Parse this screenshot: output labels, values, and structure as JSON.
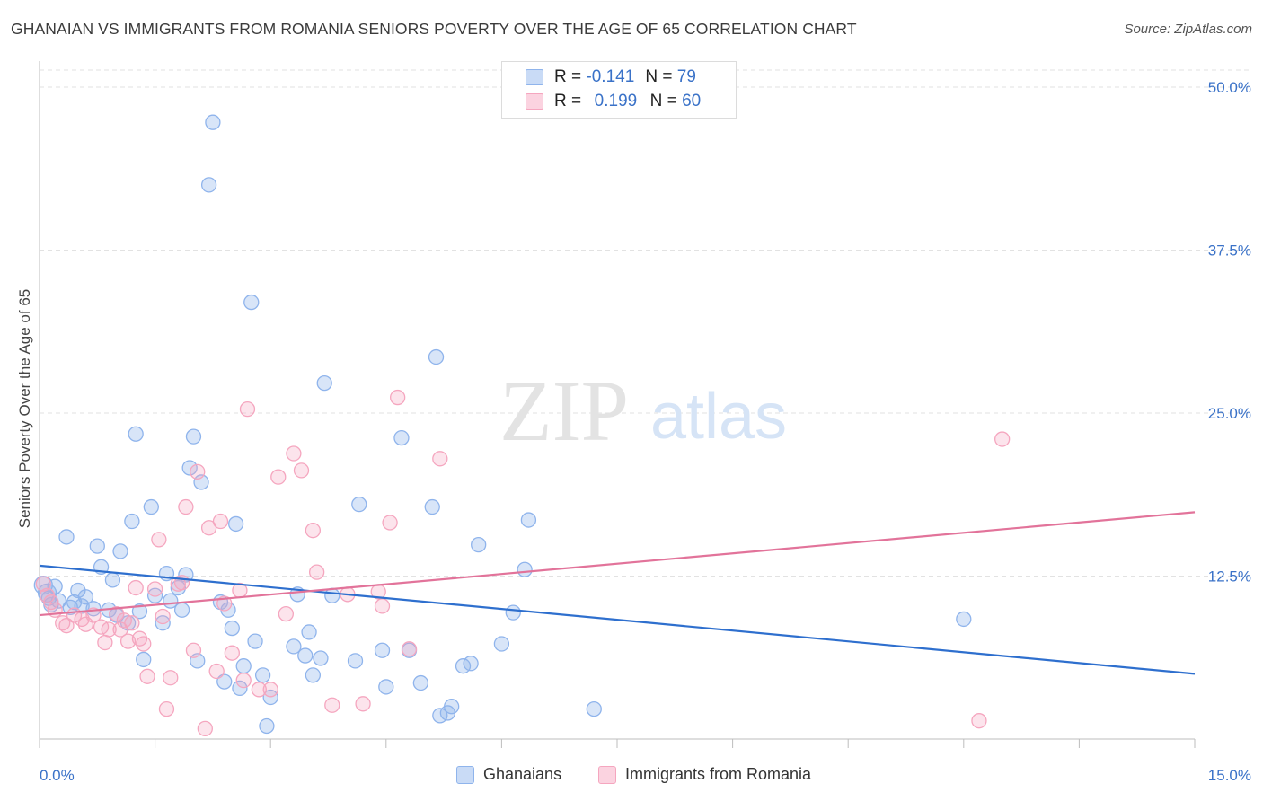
{
  "header": {
    "title": "GHANAIAN VS IMMIGRANTS FROM ROMANIA SENIORS POVERTY OVER THE AGE OF 65 CORRELATION CHART",
    "source": "Source: ZipAtlas.com"
  },
  "watermark": {
    "zip": "ZIP",
    "atlas": "atlas"
  },
  "legend_stats": [
    {
      "r_label": "R =",
      "r_value": "-0.141",
      "n_label": "N =",
      "n_value": "79",
      "color": "#8fb4ec"
    },
    {
      "r_label": "R =",
      "r_value": "0.199",
      "n_label": "N =",
      "n_value": "60",
      "color": "#f5a6bf"
    }
  ],
  "chart_data": {
    "type": "scatter",
    "title": "GHANAIAN VS IMMIGRANTS FROM ROMANIA SENIORS POVERTY OVER THE AGE OF 65 CORRELATION CHART",
    "xlabel": "",
    "ylabel": "Seniors Poverty Over the Age of 65",
    "xlim": [
      0,
      15
    ],
    "ylim": [
      0,
      50
    ],
    "x_tick_labels": [
      "0.0%",
      "15.0%"
    ],
    "y_ticks": [
      12.5,
      25.0,
      37.5,
      50.0
    ],
    "y_tick_labels": [
      "12.5%",
      "25.0%",
      "37.5%",
      "50.0%"
    ],
    "grid": "horizontal dashed",
    "legend_position": "top-center and bottom",
    "series": [
      {
        "name": "Ghanaians",
        "color": "#8fb4ec",
        "line_color": "#2e6fce",
        "trend": {
          "x": [
            0,
            15
          ],
          "y": [
            13.3,
            5.0
          ]
        },
        "points": [
          [
            0.05,
            11.8
          ],
          [
            0.1,
            11.2
          ],
          [
            0.15,
            10.3
          ],
          [
            0.2,
            11.7
          ],
          [
            0.25,
            10.6
          ],
          [
            0.35,
            15.5
          ],
          [
            0.45,
            10.5
          ],
          [
            0.5,
            11.4
          ],
          [
            0.55,
            10.2
          ],
          [
            0.6,
            10.9
          ],
          [
            0.7,
            10.0
          ],
          [
            0.75,
            14.8
          ],
          [
            0.8,
            13.2
          ],
          [
            0.9,
            9.9
          ],
          [
            0.95,
            12.2
          ],
          [
            1.0,
            9.5
          ],
          [
            1.05,
            14.4
          ],
          [
            1.15,
            8.9
          ],
          [
            1.2,
            16.7
          ],
          [
            1.25,
            23.4
          ],
          [
            1.3,
            9.8
          ],
          [
            1.35,
            6.1
          ],
          [
            1.45,
            17.8
          ],
          [
            1.5,
            11.0
          ],
          [
            1.6,
            8.9
          ],
          [
            1.65,
            12.7
          ],
          [
            1.7,
            10.6
          ],
          [
            1.8,
            11.6
          ],
          [
            1.85,
            9.9
          ],
          [
            1.9,
            12.6
          ],
          [
            1.95,
            20.8
          ],
          [
            2.0,
            23.2
          ],
          [
            2.05,
            6.0
          ],
          [
            2.1,
            19.7
          ],
          [
            2.25,
            47.3
          ],
          [
            2.2,
            42.5
          ],
          [
            2.35,
            10.5
          ],
          [
            2.4,
            4.4
          ],
          [
            2.45,
            9.9
          ],
          [
            2.5,
            8.5
          ],
          [
            2.55,
            16.5
          ],
          [
            2.6,
            3.9
          ],
          [
            2.65,
            5.6
          ],
          [
            2.75,
            33.5
          ],
          [
            2.8,
            7.5
          ],
          [
            2.9,
            4.9
          ],
          [
            2.95,
            1.0
          ],
          [
            3.0,
            3.2
          ],
          [
            3.3,
            7.1
          ],
          [
            3.35,
            11.1
          ],
          [
            3.45,
            6.4
          ],
          [
            3.5,
            8.2
          ],
          [
            3.55,
            4.9
          ],
          [
            3.65,
            6.2
          ],
          [
            3.7,
            27.3
          ],
          [
            3.8,
            11.0
          ],
          [
            4.1,
            6.0
          ],
          [
            4.15,
            18.0
          ],
          [
            4.45,
            6.8
          ],
          [
            4.5,
            4.0
          ],
          [
            4.7,
            23.1
          ],
          [
            4.8,
            6.8
          ],
          [
            4.95,
            4.3
          ],
          [
            5.1,
            17.8
          ],
          [
            5.15,
            29.3
          ],
          [
            5.2,
            1.8
          ],
          [
            5.3,
            2.0
          ],
          [
            5.35,
            2.5
          ],
          [
            5.5,
            5.6
          ],
          [
            5.6,
            5.8
          ],
          [
            5.7,
            14.9
          ],
          [
            6.0,
            7.3
          ],
          [
            6.15,
            9.7
          ],
          [
            6.3,
            13.0
          ],
          [
            6.35,
            16.8
          ],
          [
            7.2,
            2.3
          ],
          [
            12.0,
            9.2
          ],
          [
            0.12,
            10.8
          ],
          [
            0.4,
            10.1
          ]
        ]
      },
      {
        "name": "Immigrants from Romania",
        "color": "#f5a6bf",
        "line_color": "#e2739a",
        "trend": {
          "x": [
            0,
            15
          ],
          "y": [
            9.5,
            17.4
          ]
        },
        "points": [
          [
            0.05,
            11.9
          ],
          [
            0.1,
            11.0
          ],
          [
            0.15,
            10.5
          ],
          [
            0.2,
            9.9
          ],
          [
            0.3,
            8.9
          ],
          [
            0.35,
            8.7
          ],
          [
            0.45,
            9.5
          ],
          [
            0.55,
            9.2
          ],
          [
            0.6,
            8.8
          ],
          [
            0.7,
            9.5
          ],
          [
            0.8,
            8.6
          ],
          [
            0.85,
            7.4
          ],
          [
            0.9,
            8.4
          ],
          [
            1.0,
            9.6
          ],
          [
            1.05,
            8.4
          ],
          [
            1.1,
            9.1
          ],
          [
            1.15,
            7.5
          ],
          [
            1.2,
            8.9
          ],
          [
            1.25,
            11.6
          ],
          [
            1.3,
            7.7
          ],
          [
            1.35,
            7.3
          ],
          [
            1.4,
            4.8
          ],
          [
            1.5,
            11.5
          ],
          [
            1.55,
            15.3
          ],
          [
            1.6,
            9.4
          ],
          [
            1.65,
            2.3
          ],
          [
            1.7,
            4.7
          ],
          [
            1.8,
            11.9
          ],
          [
            1.85,
            12.0
          ],
          [
            1.9,
            17.8
          ],
          [
            2.0,
            6.8
          ],
          [
            2.05,
            20.5
          ],
          [
            2.15,
            0.8
          ],
          [
            2.2,
            16.2
          ],
          [
            2.3,
            5.2
          ],
          [
            2.35,
            16.7
          ],
          [
            2.4,
            10.4
          ],
          [
            2.5,
            6.6
          ],
          [
            2.6,
            11.4
          ],
          [
            2.65,
            4.5
          ],
          [
            2.7,
            25.3
          ],
          [
            2.85,
            3.8
          ],
          [
            3.0,
            3.8
          ],
          [
            3.1,
            20.1
          ],
          [
            3.2,
            9.6
          ],
          [
            3.3,
            21.9
          ],
          [
            3.4,
            20.6
          ],
          [
            3.55,
            16.0
          ],
          [
            3.6,
            12.8
          ],
          [
            3.8,
            2.6
          ],
          [
            4.0,
            11.1
          ],
          [
            4.2,
            2.7
          ],
          [
            4.4,
            11.3
          ],
          [
            4.45,
            10.2
          ],
          [
            4.55,
            16.6
          ],
          [
            4.65,
            26.2
          ],
          [
            4.8,
            6.9
          ],
          [
            5.2,
            21.5
          ],
          [
            12.5,
            23.0
          ],
          [
            12.2,
            1.4
          ]
        ]
      }
    ]
  },
  "bottom_legend": [
    {
      "label": "Ghanaians",
      "color": "#8fb4ec"
    },
    {
      "label": "Immigrants from Romania",
      "color": "#f5a6bf"
    }
  ]
}
